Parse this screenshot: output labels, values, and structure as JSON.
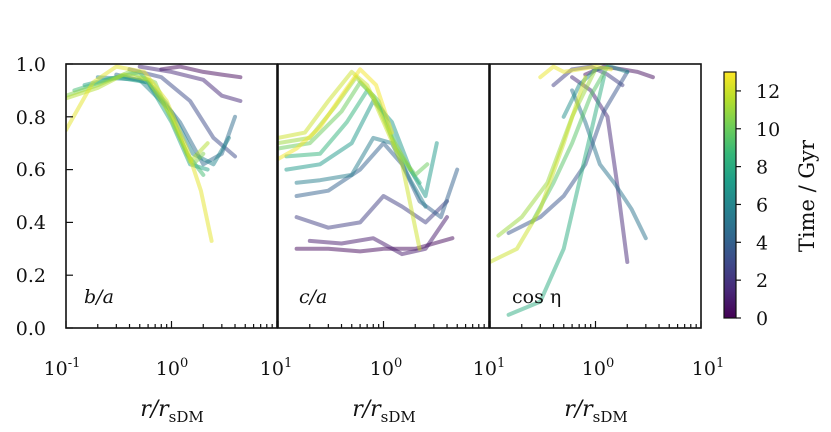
{
  "chart_data": {
    "type": "line",
    "xscale": "log",
    "xlim": [
      0.1,
      10
    ],
    "ylim": [
      0.0,
      1.0
    ],
    "x_tick_labels": [
      {
        "base": "10",
        "exp": "-1"
      },
      {
        "base": "10",
        "exp": "0"
      },
      {
        "base": "10",
        "exp": "1"
      }
    ],
    "y_tick_labels": [
      "0.0",
      "0.2",
      "0.4",
      "0.6",
      "0.8",
      "1.0"
    ],
    "xlabel": {
      "main": "r/r",
      "sub": "sDM"
    },
    "colorbar": {
      "title": "Time / Gyr",
      "range": [
        0,
        13
      ],
      "tick_labels": [
        "0",
        "2",
        "4",
        "6",
        "8",
        "10",
        "12"
      ],
      "tick_values": [
        0,
        2,
        4,
        6,
        8,
        10,
        12
      ],
      "colormap": [
        "#440154",
        "#482878",
        "#3e4989",
        "#31688e",
        "#26828e",
        "#1f9e89",
        "#35b779",
        "#6ece58",
        "#b5de2b",
        "#fde725"
      ]
    },
    "panels": [
      {
        "label": "b/a",
        "series": [
          {
            "t": 0.3,
            "x": [
              0.8,
              1.2,
              2.0,
              3.0,
              4.5
            ],
            "y": [
              0.98,
              0.99,
              0.97,
              0.96,
              0.95
            ]
          },
          {
            "t": 1.5,
            "x": [
              0.5,
              1.0,
              2.0,
              3.0,
              4.5
            ],
            "y": [
              0.99,
              0.97,
              0.94,
              0.88,
              0.86
            ]
          },
          {
            "t": 3.0,
            "x": [
              0.4,
              0.8,
              1.5,
              2.5,
              4.0
            ],
            "y": [
              0.98,
              0.95,
              0.86,
              0.72,
              0.65
            ]
          },
          {
            "t": 4.5,
            "x": [
              0.3,
              0.6,
              1.2,
              2.0,
              3.0,
              4.0
            ],
            "y": [
              0.96,
              0.93,
              0.78,
              0.62,
              0.66,
              0.8
            ]
          },
          {
            "t": 6.0,
            "x": [
              0.2,
              0.5,
              1.0,
              1.6,
              2.5,
              3.5
            ],
            "y": [
              0.95,
              0.94,
              0.82,
              0.66,
              0.62,
              0.72
            ]
          },
          {
            "t": 7.5,
            "x": [
              0.15,
              0.3,
              0.6,
              1.0,
              1.5,
              2.2
            ],
            "y": [
              0.92,
              0.95,
              0.93,
              0.78,
              0.62,
              0.6
            ]
          },
          {
            "t": 9.0,
            "x": [
              0.12,
              0.25,
              0.5,
              0.9,
              1.4,
              2.0
            ],
            "y": [
              0.9,
              0.94,
              0.97,
              0.85,
              0.66,
              0.58
            ]
          },
          {
            "t": 10.5,
            "x": [
              0.1,
              0.2,
              0.4,
              0.7,
              1.1,
              1.6,
              2.0
            ],
            "y": [
              0.88,
              0.92,
              0.97,
              0.93,
              0.75,
              0.62,
              0.66
            ]
          },
          {
            "t": 11.5,
            "x": [
              0.1,
              0.2,
              0.35,
              0.6,
              1.0,
              1.5,
              2.2
            ],
            "y": [
              0.87,
              0.91,
              0.96,
              0.94,
              0.8,
              0.63,
              0.7
            ]
          },
          {
            "t": 12.5,
            "x": [
              0.1,
              0.18,
              0.3,
              0.55,
              0.9,
              1.4,
              1.9,
              2.4
            ],
            "y": [
              0.75,
              0.93,
              0.99,
              0.97,
              0.86,
              0.68,
              0.52,
              0.33
            ]
          }
        ]
      },
      {
        "label": "c/a",
        "series": [
          {
            "t": 0.3,
            "x": [
              0.15,
              0.3,
              0.6,
              1.0,
              2.0,
              3.0,
              4.5
            ],
            "y": [
              0.3,
              0.3,
              0.29,
              0.3,
              0.3,
              0.32,
              0.34
            ]
          },
          {
            "t": 1.0,
            "x": [
              0.2,
              0.4,
              0.8,
              1.5,
              2.5,
              4.0
            ],
            "y": [
              0.33,
              0.32,
              0.34,
              0.28,
              0.3,
              0.42
            ]
          },
          {
            "t": 2.5,
            "x": [
              0.15,
              0.3,
              0.6,
              1.0,
              1.5,
              2.5,
              4.0
            ],
            "y": [
              0.42,
              0.38,
              0.4,
              0.5,
              0.46,
              0.4,
              0.48
            ]
          },
          {
            "t": 4.0,
            "x": [
              0.15,
              0.3,
              0.6,
              1.0,
              1.5,
              2.2,
              3.5,
              5.0
            ],
            "y": [
              0.5,
              0.52,
              0.6,
              0.7,
              0.62,
              0.48,
              0.42,
              0.6
            ]
          },
          {
            "t": 5.5,
            "x": [
              0.15,
              0.25,
              0.5,
              0.8,
              1.2,
              1.8,
              2.5
            ],
            "y": [
              0.55,
              0.56,
              0.58,
              0.72,
              0.7,
              0.56,
              0.46
            ]
          },
          {
            "t": 7.0,
            "x": [
              0.12,
              0.25,
              0.5,
              0.8,
              1.2,
              1.8,
              2.5,
              3.2
            ],
            "y": [
              0.6,
              0.62,
              0.7,
              0.86,
              0.78,
              0.6,
              0.5,
              0.7
            ]
          },
          {
            "t": 8.5,
            "x": [
              0.12,
              0.25,
              0.45,
              0.7,
              1.0,
              1.5,
              2.2
            ],
            "y": [
              0.65,
              0.66,
              0.78,
              0.9,
              0.82,
              0.64,
              0.55
            ]
          },
          {
            "t": 10.0,
            "x": [
              0.1,
              0.2,
              0.4,
              0.6,
              0.9,
              1.3,
              2.0,
              2.6
            ],
            "y": [
              0.68,
              0.7,
              0.82,
              0.93,
              0.86,
              0.68,
              0.58,
              0.62
            ]
          },
          {
            "t": 11.0,
            "x": [
              0.1,
              0.2,
              0.35,
              0.55,
              0.8,
              1.2,
              1.8
            ],
            "y": [
              0.7,
              0.72,
              0.84,
              0.95,
              0.88,
              0.72,
              0.6
            ]
          },
          {
            "t": 12.0,
            "x": [
              0.1,
              0.18,
              0.3,
              0.5,
              0.7,
              1.0,
              1.5,
              2.2
            ],
            "y": [
              0.72,
              0.74,
              0.86,
              0.97,
              0.92,
              0.78,
              0.62,
              0.3
            ]
          },
          {
            "t": 12.8,
            "x": [
              0.1,
              0.15,
              0.25,
              0.4,
              0.6,
              0.85,
              1.2
            ],
            "y": [
              0.64,
              0.68,
              0.76,
              0.88,
              0.98,
              0.92,
              0.74
            ]
          }
        ]
      },
      {
        "label": "cos η",
        "series": [
          {
            "t": 0.5,
            "x": [
              0.8,
              1.2,
              1.8,
              2.5,
              3.5
            ],
            "y": [
              0.96,
              0.99,
              0.98,
              0.97,
              0.95
            ]
          },
          {
            "t": 1.5,
            "x": [
              0.6,
              0.9,
              1.3,
              1.6,
              2.0
            ],
            "y": [
              0.95,
              0.9,
              0.8,
              0.55,
              0.25
            ]
          },
          {
            "t": 2.5,
            "x": [
              0.4,
              0.6,
              0.9,
              1.3,
              1.8
            ],
            "y": [
              0.92,
              0.98,
              0.99,
              0.96,
              0.92
            ]
          },
          {
            "t": 3.5,
            "x": [
              0.15,
              0.3,
              0.5,
              0.8,
              1.2,
              2.0
            ],
            "y": [
              0.36,
              0.42,
              0.5,
              0.62,
              0.82,
              0.97
            ]
          },
          {
            "t": 5.0,
            "x": [
              0.6,
              0.8,
              1.1,
              1.5,
              2.2,
              3.0
            ],
            "y": [
              0.9,
              0.78,
              0.62,
              0.55,
              0.45,
              0.34
            ]
          },
          {
            "t": 6.5,
            "x": [
              0.5,
              0.7,
              1.0,
              1.4,
              2.0
            ],
            "y": [
              0.8,
              0.92,
              0.98,
              0.99,
              0.97
            ]
          },
          {
            "t": 8.0,
            "x": [
              0.15,
              0.3,
              0.5,
              0.8,
              1.2
            ],
            "y": [
              0.05,
              0.1,
              0.3,
              0.65,
              0.95
            ]
          },
          {
            "t": 9.5,
            "x": [
              0.25,
              0.4,
              0.6,
              0.9,
              1.3
            ],
            "y": [
              0.4,
              0.55,
              0.7,
              0.88,
              0.99
            ]
          },
          {
            "t": 11.0,
            "x": [
              0.12,
              0.2,
              0.35,
              0.6,
              1.0
            ],
            "y": [
              0.35,
              0.42,
              0.55,
              0.8,
              0.98
            ]
          },
          {
            "t": 12.0,
            "x": [
              0.1,
              0.18,
              0.3,
              0.5,
              0.8
            ],
            "y": [
              0.25,
              0.3,
              0.45,
              0.7,
              0.95
            ]
          },
          {
            "t": 12.6,
            "x": [
              0.3,
              0.4,
              0.5,
              0.7,
              1.0,
              1.4
            ],
            "y": [
              0.95,
              0.99,
              0.97,
              0.98,
              0.99,
              0.98
            ]
          }
        ]
      }
    ]
  }
}
